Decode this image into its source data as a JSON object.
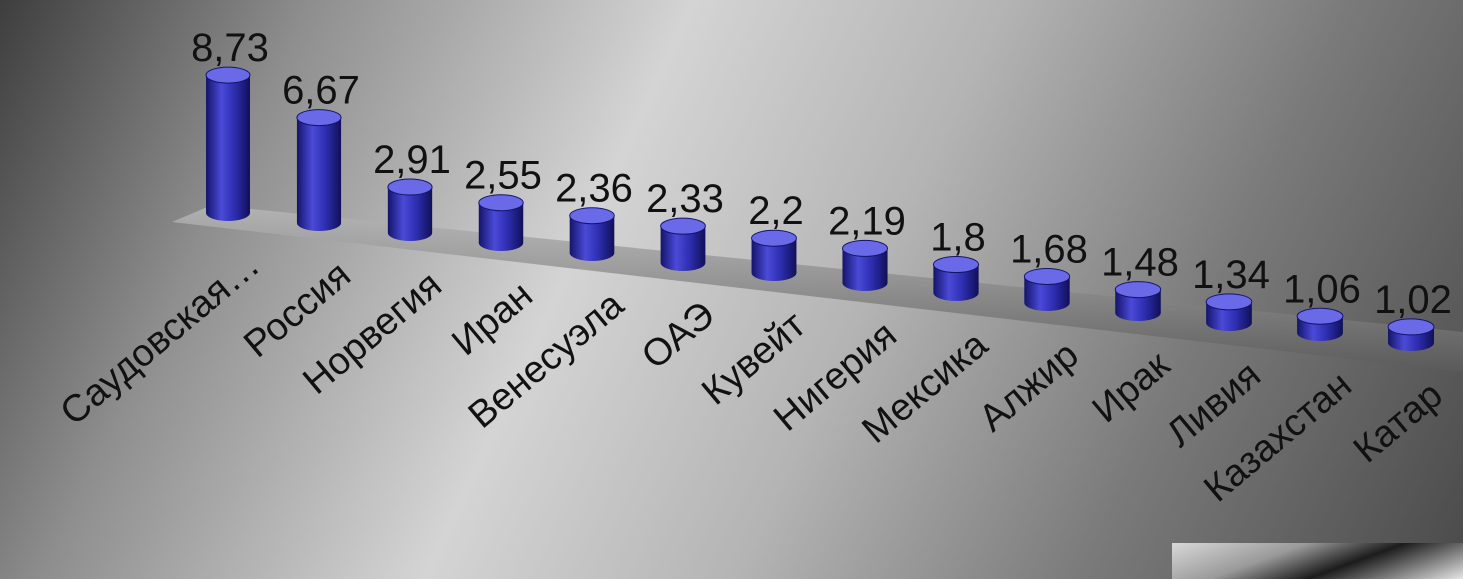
{
  "chart_data": {
    "type": "bar",
    "categories": [
      "Саудовская…",
      "Россия",
      "Норвегия",
      "Иран",
      "Венесуэла",
      "ОАЭ",
      "Кувейт",
      "Нигерия",
      "Мексика",
      "Алжир",
      "Ирак",
      "Ливия",
      "Казахстан",
      "Катар"
    ],
    "values": [
      8.73,
      6.67,
      2.91,
      2.55,
      2.36,
      2.33,
      2.2,
      2.19,
      1.8,
      1.68,
      1.48,
      1.34,
      1.06,
      1.02
    ],
    "value_labels": [
      "8,73",
      "6,67",
      "2,91",
      "2,55",
      "2,36",
      "2,33",
      "2,2",
      "2,19",
      "1,8",
      "1,68",
      "1,48",
      "1,34",
      "1,06",
      "1,02"
    ],
    "bar_style": "3d-cylinder",
    "colors": {
      "bar": "#2d2db0",
      "bar_light": "#6a6ae8",
      "bar_dark": "#14146a",
      "floor": "#9a9a9a"
    },
    "grid": false,
    "legend": "none"
  }
}
